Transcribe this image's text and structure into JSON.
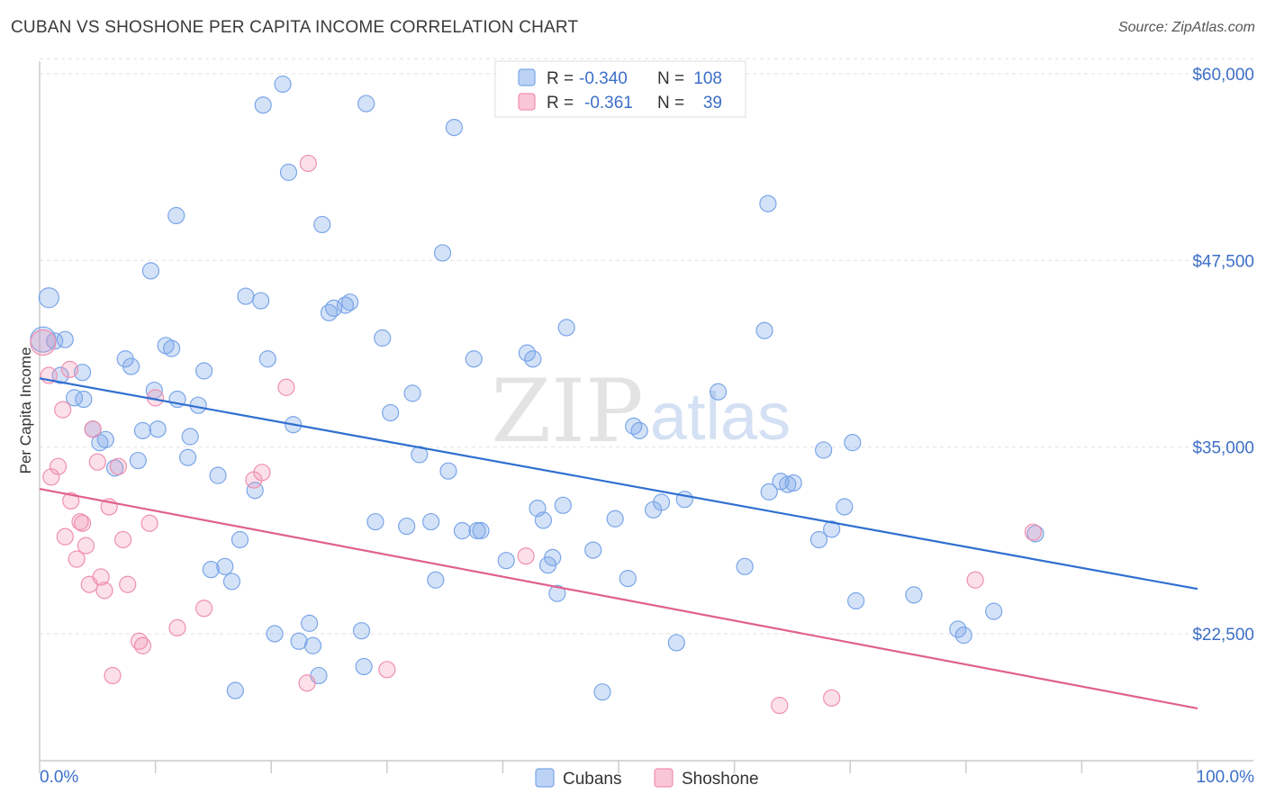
{
  "header": {
    "title": "CUBAN VS SHOSHONE PER CAPITA INCOME CORRELATION CHART",
    "source": "Source: ZipAtlas.com"
  },
  "watermark": {
    "zip": "ZIP",
    "atlas": "atlas"
  },
  "stats_legend": {
    "rows": [
      {
        "r_label": "R =",
        "r_value": "-0.340",
        "n_label": "N =",
        "n_value": "108",
        "color": "#7aa6e8"
      },
      {
        "r_label": "R =",
        "r_value": "-0.361",
        "n_label": "N =",
        "n_value": "39",
        "color": "#f08fb0"
      }
    ]
  },
  "chart_data": {
    "type": "scatter",
    "title": "CUBAN VS SHOSHONE PER CAPITA INCOME CORRELATION CHART",
    "xlabel": "",
    "ylabel": "Per Capita Income",
    "xlim": [
      0,
      100
    ],
    "ylim": [
      14000,
      61500
    ],
    "x_tick_labels": [
      "0.0%",
      "100.0%"
    ],
    "y_ticks": [
      {
        "value": 22500,
        "label": "$22,500"
      },
      {
        "value": 35000,
        "label": "$35,000"
      },
      {
        "value": 47500,
        "label": "$47,500"
      },
      {
        "value": 60000,
        "label": "$60,000"
      }
    ],
    "grid": true,
    "legend_position": "bottom",
    "series": [
      {
        "name": "Cubans",
        "color": "#7aa6e8",
        "line_color": "#2f6fd0",
        "trend": {
          "x": [
            0,
            100
          ],
          "y": [
            39600,
            25500
          ]
        },
        "points": [
          [
            0.3,
            42200
          ],
          [
            0.8,
            45000
          ],
          [
            1.3,
            42100
          ],
          [
            2.2,
            42200
          ],
          [
            1.8,
            39800
          ],
          [
            3.0,
            38300
          ],
          [
            3.8,
            38200
          ],
          [
            3.7,
            40000
          ],
          [
            4.6,
            36200
          ],
          [
            5.7,
            35500
          ],
          [
            5.2,
            35300
          ],
          [
            6.5,
            33600
          ],
          [
            7.4,
            40900
          ],
          [
            7.9,
            40400
          ],
          [
            8.5,
            34100
          ],
          [
            8.9,
            36100
          ],
          [
            9.6,
            46800
          ],
          [
            9.9,
            38800
          ],
          [
            10.2,
            36200
          ],
          [
            10.9,
            41800
          ],
          [
            11.4,
            41600
          ],
          [
            11.9,
            38200
          ],
          [
            11.8,
            50500
          ],
          [
            12.8,
            34300
          ],
          [
            13.0,
            35700
          ],
          [
            13.7,
            37800
          ],
          [
            14.2,
            40100
          ],
          [
            14.8,
            26800
          ],
          [
            15.4,
            33100
          ],
          [
            16.0,
            27000
          ],
          [
            16.6,
            26000
          ],
          [
            16.9,
            18700
          ],
          [
            17.3,
            28800
          ],
          [
            17.8,
            45100
          ],
          [
            18.6,
            32100
          ],
          [
            19.1,
            44800
          ],
          [
            19.3,
            57900
          ],
          [
            19.7,
            40900
          ],
          [
            20.3,
            22500
          ],
          [
            21.0,
            59300
          ],
          [
            21.5,
            53400
          ],
          [
            21.9,
            36500
          ],
          [
            22.4,
            22000
          ],
          [
            23.3,
            23200
          ],
          [
            23.6,
            21700
          ],
          [
            24.1,
            19700
          ],
          [
            24.4,
            49900
          ],
          [
            25.0,
            44000
          ],
          [
            25.4,
            44300
          ],
          [
            26.4,
            44500
          ],
          [
            26.8,
            44700
          ],
          [
            27.8,
            22700
          ],
          [
            28.0,
            20300
          ],
          [
            28.2,
            58000
          ],
          [
            29.0,
            30000
          ],
          [
            29.6,
            42300
          ],
          [
            30.3,
            37300
          ],
          [
            31.7,
            29700
          ],
          [
            32.2,
            38600
          ],
          [
            32.8,
            34500
          ],
          [
            33.8,
            30000
          ],
          [
            34.2,
            26100
          ],
          [
            34.8,
            48000
          ],
          [
            35.3,
            33400
          ],
          [
            35.8,
            56400
          ],
          [
            36.5,
            29400
          ],
          [
            37.5,
            40900
          ],
          [
            37.8,
            29400
          ],
          [
            38.1,
            29400
          ],
          [
            40.3,
            27400
          ],
          [
            42.1,
            41300
          ],
          [
            42.6,
            40900
          ],
          [
            43.0,
            30900
          ],
          [
            43.5,
            30100
          ],
          [
            43.9,
            27100
          ],
          [
            44.3,
            27600
          ],
          [
            44.7,
            25200
          ],
          [
            45.2,
            31100
          ],
          [
            45.5,
            43000
          ],
          [
            47.8,
            28100
          ],
          [
            48.6,
            18600
          ],
          [
            49.7,
            30200
          ],
          [
            50.8,
            26200
          ],
          [
            51.3,
            36400
          ],
          [
            51.8,
            36100
          ],
          [
            53.0,
            30800
          ],
          [
            53.7,
            31300
          ],
          [
            55.0,
            21900
          ],
          [
            55.7,
            31500
          ],
          [
            58.6,
            38700
          ],
          [
            60.9,
            27000
          ],
          [
            62.6,
            42800
          ],
          [
            62.9,
            51300
          ],
          [
            63.0,
            32000
          ],
          [
            64.0,
            32700
          ],
          [
            64.6,
            32500
          ],
          [
            65.1,
            32600
          ],
          [
            67.3,
            28800
          ],
          [
            67.7,
            34800
          ],
          [
            68.4,
            29500
          ],
          [
            69.5,
            31000
          ],
          [
            70.2,
            35300
          ],
          [
            70.5,
            24700
          ],
          [
            75.5,
            25100
          ],
          [
            79.3,
            22800
          ],
          [
            79.8,
            22400
          ],
          [
            82.4,
            24000
          ],
          [
            86.0,
            29200
          ]
        ]
      },
      {
        "name": "Shoshone",
        "color": "#f08fb0",
        "line_color": "#e0608d",
        "trend": {
          "x": [
            0,
            100
          ],
          "y": [
            32200,
            17500
          ]
        },
        "points": [
          [
            0.3,
            42000
          ],
          [
            0.8,
            39800
          ],
          [
            1.0,
            33000
          ],
          [
            1.6,
            33700
          ],
          [
            2.0,
            37500
          ],
          [
            2.2,
            29000
          ],
          [
            2.6,
            40200
          ],
          [
            2.7,
            31400
          ],
          [
            3.2,
            27500
          ],
          [
            3.5,
            30000
          ],
          [
            3.7,
            29900
          ],
          [
            4.0,
            28400
          ],
          [
            4.3,
            25800
          ],
          [
            4.6,
            36200
          ],
          [
            5.0,
            34000
          ],
          [
            5.3,
            26300
          ],
          [
            5.6,
            25400
          ],
          [
            6.0,
            31000
          ],
          [
            6.3,
            19700
          ],
          [
            6.8,
            33700
          ],
          [
            7.2,
            28800
          ],
          [
            7.6,
            25800
          ],
          [
            8.6,
            22000
          ],
          [
            8.9,
            21700
          ],
          [
            9.5,
            29900
          ],
          [
            10.0,
            38300
          ],
          [
            11.9,
            22900
          ],
          [
            14.2,
            24200
          ],
          [
            18.5,
            32800
          ],
          [
            19.2,
            33300
          ],
          [
            21.3,
            39000
          ],
          [
            23.1,
            19200
          ],
          [
            23.2,
            54000
          ],
          [
            30.0,
            20100
          ],
          [
            42.0,
            27700
          ],
          [
            63.9,
            17700
          ],
          [
            68.4,
            18200
          ],
          [
            80.8,
            26100
          ],
          [
            85.8,
            29300
          ]
        ]
      }
    ]
  }
}
